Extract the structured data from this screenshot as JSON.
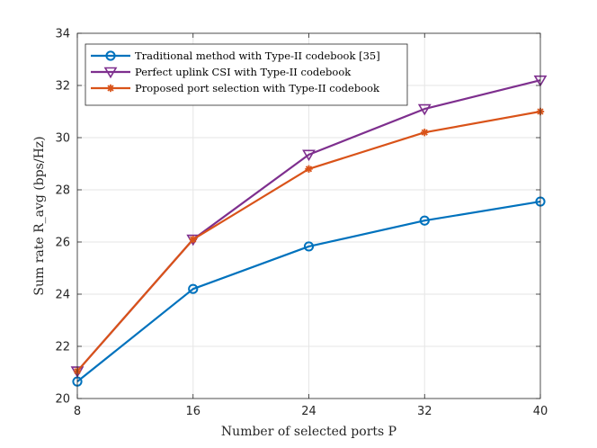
{
  "chart_data": {
    "type": "line",
    "xlabel": "Number of selected ports P",
    "ylabel": "Sum rate R_avg (bps/Hz)",
    "x": [
      8,
      16,
      24,
      32,
      40
    ],
    "xlim": [
      8,
      40
    ],
    "ylim": [
      20,
      34
    ],
    "xticks": [
      8,
      16,
      24,
      32,
      40
    ],
    "yticks": [
      20,
      22,
      24,
      26,
      28,
      30,
      32,
      34
    ],
    "grid": true,
    "legend_position": "top-left",
    "series": [
      {
        "name": "Traditional method with Type-II codebook [35]",
        "values": [
          20.65,
          24.2,
          25.83,
          26.82,
          27.55
        ],
        "color": "#0072BD",
        "marker": "circle"
      },
      {
        "name": "Perfect uplink CSI with Type-II codebook",
        "values": [
          21.05,
          26.1,
          29.35,
          31.1,
          32.2
        ],
        "color": "#7E2F8E",
        "marker": "triangle-down"
      },
      {
        "name": "Proposed port selection with Type-II codebook",
        "values": [
          21.05,
          26.1,
          28.8,
          30.2,
          31.0
        ],
        "color": "#D95319",
        "marker": "asterisk"
      }
    ]
  }
}
